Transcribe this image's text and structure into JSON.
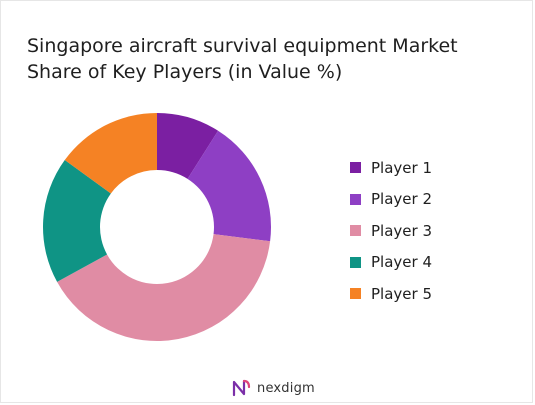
{
  "title": "Singapore aircraft survival equipment Market Share of Key Players (in Value %)",
  "brand": {
    "name": "nexdigm",
    "icon": "nexdigm-logo-icon"
  },
  "chart_data": {
    "type": "pie",
    "donut": true,
    "title": "Singapore aircraft survival equipment Market Share of Key Players (in Value %)",
    "categories": [
      "Player 1",
      "Player 2",
      "Player 3",
      "Player 4",
      "Player 5"
    ],
    "values": [
      9,
      18,
      40,
      18,
      15
    ],
    "colors": [
      "#7b1fa2",
      "#8e3fc4",
      "#e08ca4",
      "#0f9485",
      "#f58224"
    ],
    "legend_position": "right"
  }
}
